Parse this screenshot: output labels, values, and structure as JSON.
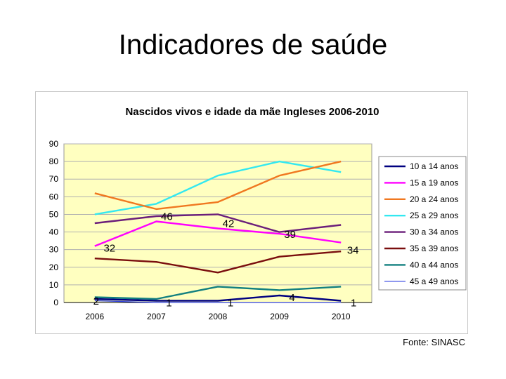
{
  "slide_title": "Indicadores de saúde",
  "source": "Fonte: SINASC",
  "chart_data": {
    "type": "line",
    "title": "Nascidos vivos e idade da mãe Ingleses 2006-2010",
    "xlabel": "",
    "ylabel": "",
    "x": [
      "2006",
      "2007",
      "2008",
      "2009",
      "2010"
    ],
    "ylim": [
      0,
      90
    ],
    "yticks": [
      0,
      10,
      20,
      30,
      40,
      50,
      60,
      70,
      80,
      90
    ],
    "grid": true,
    "plot_background": "#FFFFC0",
    "legend_position": "right",
    "series": [
      {
        "name": "10 a 14 anos",
        "color": "#000080",
        "values": [
          2,
          1,
          1,
          4,
          1
        ],
        "labels": [
          "2",
          "1",
          "1",
          "4",
          "1"
        ]
      },
      {
        "name": "15 a 19 anos",
        "color": "#FF00FF",
        "values": [
          32,
          46,
          42,
          39,
          34
        ],
        "labels": [
          "32",
          "46",
          "42",
          "39",
          "34"
        ]
      },
      {
        "name": "20 a 24 anos",
        "color": "#F07820",
        "values": [
          62,
          53,
          57,
          72,
          80
        ]
      },
      {
        "name": "25 a 29 anos",
        "color": "#33E8F0",
        "values": [
          50,
          56,
          72,
          80,
          74
        ]
      },
      {
        "name": "30 a 34 anos",
        "color": "#6B1E7A",
        "values": [
          45,
          49,
          50,
          40,
          44
        ]
      },
      {
        "name": "35 a 39 anos",
        "color": "#7A0E0E",
        "values": [
          25,
          23,
          17,
          26,
          29
        ]
      },
      {
        "name": "40 a 44 anos",
        "color": "#138080",
        "values": [
          3,
          2,
          9,
          7,
          9
        ]
      },
      {
        "name": "45 a 49 anos",
        "color": "#2E3FE0",
        "values": [
          1,
          0,
          0,
          0,
          0
        ]
      }
    ]
  }
}
